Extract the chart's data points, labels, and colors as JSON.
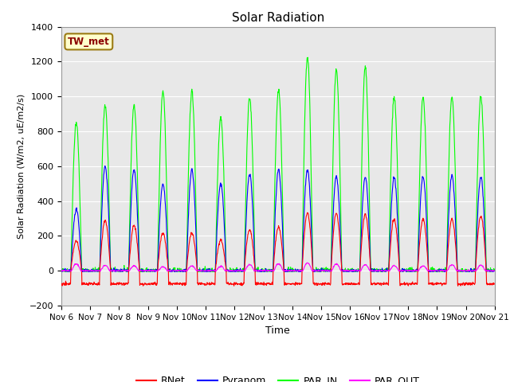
{
  "title": "Solar Radiation",
  "ylabel": "Solar Radiation (W/m2, uE/m2/s)",
  "xlabel": "Time",
  "ylim": [
    -200,
    1400
  ],
  "yticks": [
    -200,
    0,
    200,
    400,
    600,
    800,
    1000,
    1200,
    1400
  ],
  "x_tick_labels": [
    "Nov 6",
    "Nov 7",
    "Nov 8",
    "Nov 9",
    "Nov 10",
    "Nov 11",
    "Nov 12",
    "Nov 13",
    "Nov 14",
    "Nov 15",
    "Nov 16",
    "Nov 17",
    "Nov 18",
    "Nov 19",
    "Nov 20",
    "Nov 21"
  ],
  "site_label": "TW_met",
  "site_label_color": "#8B0000",
  "site_label_bg": "#FFFFCC",
  "site_label_border": "#9B7B14",
  "bg_color": "#E8E8E8",
  "colors": {
    "RNet": "#FF0000",
    "Pyranom": "#0000FF",
    "PAR_IN": "#00FF00",
    "PAR_OUT": "#FF00FF"
  },
  "n_days": 15,
  "par_in_peaks": [
    850,
    950,
    950,
    1030,
    1030,
    880,
    990,
    1040,
    1220,
    1150,
    1165,
    995,
    995,
    995,
    1000
  ],
  "pyranom_peaks": [
    350,
    600,
    580,
    500,
    580,
    500,
    555,
    580,
    580,
    540,
    540,
    535,
    540,
    545,
    535
  ],
  "rnet_peaks": [
    170,
    290,
    260,
    215,
    215,
    175,
    235,
    250,
    330,
    330,
    325,
    295,
    295,
    295,
    315
  ],
  "par_out_peaks": [
    40,
    30,
    28,
    22,
    28,
    25,
    35,
    40,
    45,
    38,
    35,
    30,
    28,
    35,
    32
  ],
  "rnet_night": -75,
  "resolution_hours": 0.25
}
